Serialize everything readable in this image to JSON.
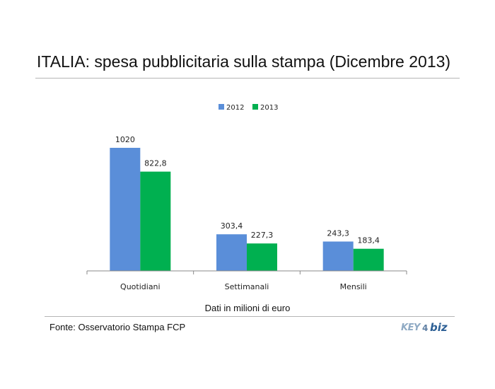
{
  "page": {
    "title": "ITALIA: spesa pubblicitaria sulla stampa (Dicembre 2013)",
    "note": "Dati in milioni di euro",
    "source": "Fonte: Osservatorio Stampa FCP",
    "logo_text": "KEY4biz"
  },
  "colors": {
    "series_2012": "#5A8ED9",
    "series_2013": "#00B050"
  },
  "chart_data": {
    "type": "bar",
    "title": "ITALIA: spesa pubblicitaria sulla stampa (Dicembre 2013)",
    "categories": [
      "Quotidiani",
      "Settimanali",
      "Mensili"
    ],
    "series": [
      {
        "name": "2012",
        "values": [
          1020,
          303.4,
          243.3
        ],
        "labels": [
          "1020",
          "303,4",
          "243,3"
        ]
      },
      {
        "name": "2013",
        "values": [
          822.8,
          227.3,
          183.4
        ],
        "labels": [
          "822,8",
          "227,3",
          "183,4"
        ]
      }
    ],
    "legend": "top-center",
    "ylim": [
      0,
      1200
    ],
    "grid": false,
    "unit_note": "Dati in milioni di euro"
  }
}
